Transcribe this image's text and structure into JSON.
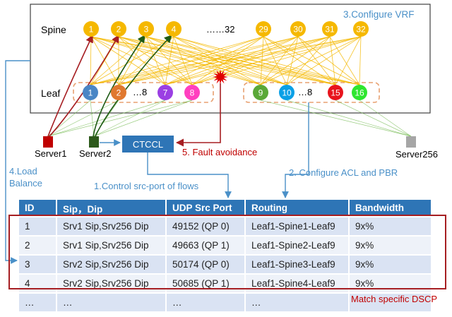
{
  "fabric": {
    "spine_label": "Spine",
    "leaf_label": "Leaf",
    "spine_ellipsis": "……32",
    "leaf_ellipsis_left": "…8",
    "leaf_ellipsis_right": "…8"
  },
  "spines": [
    {
      "label": "1",
      "color": "#f5b800"
    },
    {
      "label": "2",
      "color": "#f5b800"
    },
    {
      "label": "3",
      "color": "#f5b800"
    },
    {
      "label": "4",
      "color": "#f5b800"
    },
    {
      "label": "29",
      "color": "#f5b800"
    },
    {
      "label": "30",
      "color": "#f5b800"
    },
    {
      "label": "31",
      "color": "#f5b800"
    },
    {
      "label": "32",
      "color": "#f5b800"
    }
  ],
  "leaves": [
    {
      "label": "1",
      "color": "#4a86c5"
    },
    {
      "label": "2",
      "color": "#e0782f"
    },
    {
      "label": "7",
      "color": "#9b3fe3"
    },
    {
      "label": "8",
      "color": "#ff3fbf"
    },
    {
      "label": "9",
      "color": "#5aa838"
    },
    {
      "label": "10",
      "color": "#0aa0e6"
    },
    {
      "label": "15",
      "color": "#e8141c"
    },
    {
      "label": "16",
      "color": "#2ee62e"
    }
  ],
  "servers": {
    "server1": {
      "label": "Server1",
      "color": "#c00000"
    },
    "server2": {
      "label": "Server2",
      "color": "#2d5a1b"
    },
    "server256": {
      "label": "Server256",
      "color": "#a6a6a6"
    }
  },
  "controller": {
    "label": "CTCCL",
    "color": "#2e75b6"
  },
  "annotations": {
    "configure_vrf": "3.Configure VRF",
    "fault_avoidance": "5. Fault  avoidance",
    "load_balance_line1": "4.Load",
    "load_balance_line2": "Balance",
    "control_src_port": "1.Control src-port of flows",
    "configure_acl_pbr": "2. Configure ACL and PBR",
    "match_dscp": "Match specific DSCP"
  },
  "colors": {
    "link": "#f5b800",
    "leaf_border": "#e8a070",
    "annotation_blue": "#4a90c8",
    "fault_red": "#c00000",
    "fault_star": "#e00000",
    "green_link": "#7fbf5f",
    "table_header": "#2e75b6"
  },
  "table": {
    "headers": [
      "ID",
      "Sip，Dip",
      "UDP Src Port",
      "Routing",
      "Bandwidth"
    ],
    "rows": [
      [
        "1",
        "Srv1 Sip,Srv256 Dip",
        "49152 (QP 0)",
        "Leaf1-Spine1-Leaf9",
        "9x%"
      ],
      [
        "2",
        "Srv1 Sip,Srv256 Dip",
        "49663 (QP 1)",
        "Leaf1-Spine2-Leaf9",
        "9x%"
      ],
      [
        "3",
        "Srv2 Sip,Srv256 Dip",
        "50174 (QP 0)",
        "Leaf1-Spine3-Leaf9",
        "9x%"
      ],
      [
        "4",
        "Srv2 Sip,Srv256 Dip",
        "50685 (QP 1)",
        "Leaf1-Spine4-Leaf9",
        "9x%"
      ],
      [
        "…",
        "…",
        "…",
        "…",
        ""
      ]
    ]
  }
}
